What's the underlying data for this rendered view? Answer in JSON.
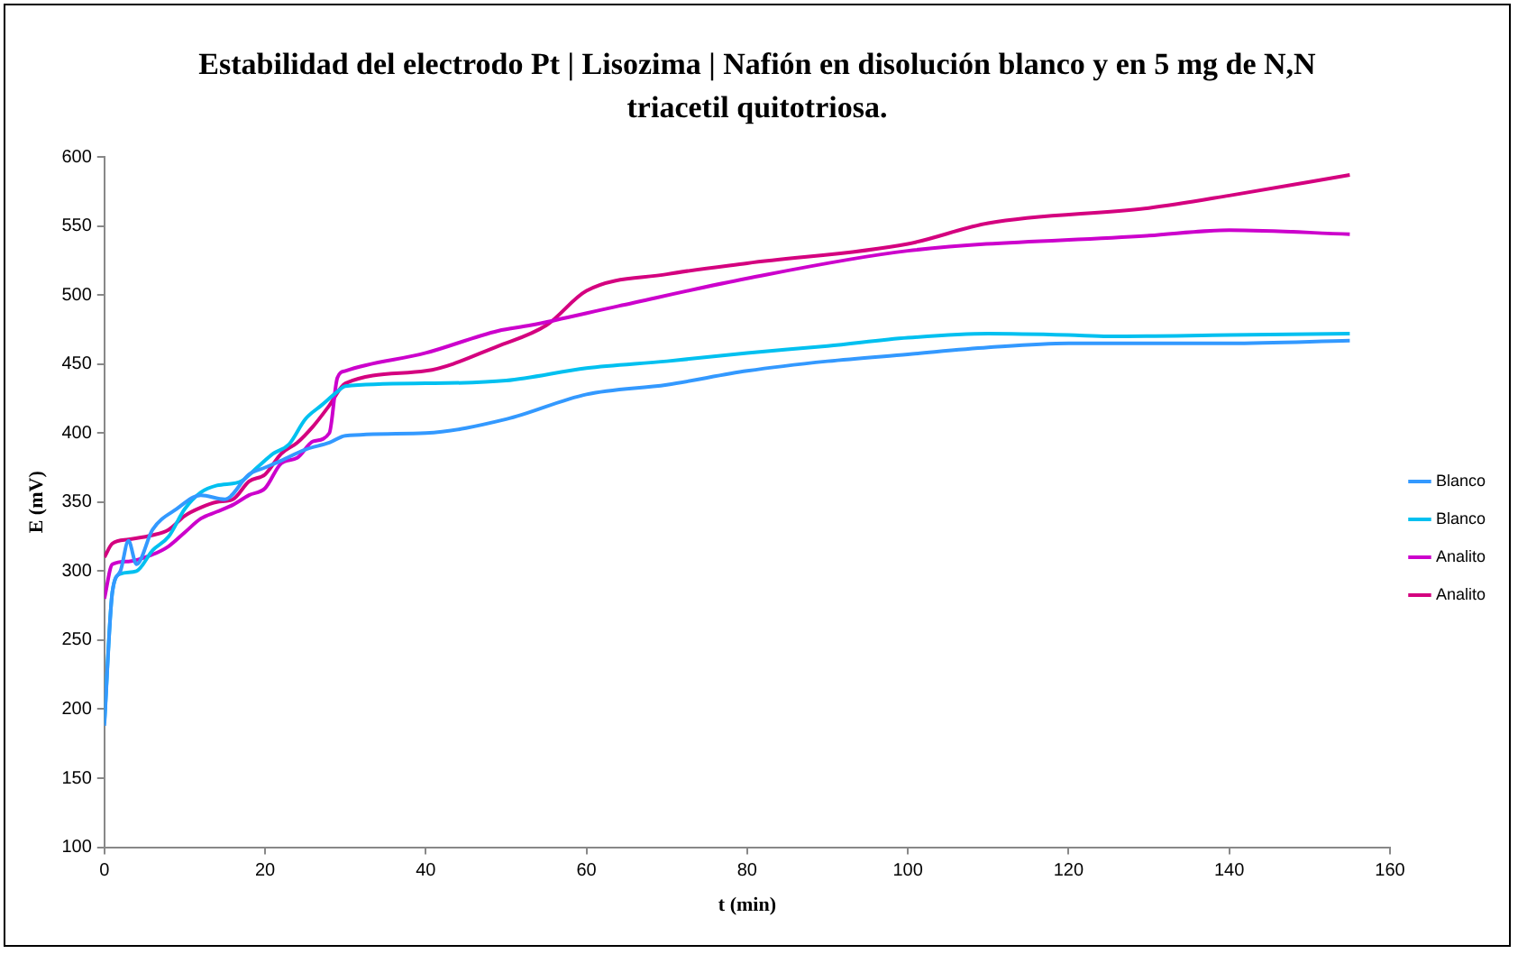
{
  "chart_data": {
    "type": "line",
    "title": "Estabilidad del electrodo Pt  | Lisozima | Nafión en disolución blanco y en 5 mg de N,N triacetil quitotriosa.",
    "xlabel": "t (min)",
    "ylabel": "E (mV)",
    "xlim": [
      0,
      160
    ],
    "xticks": [
      0,
      20,
      40,
      60,
      80,
      100,
      120,
      140,
      160
    ],
    "ylim": [
      100,
      600
    ],
    "yticks": [
      100,
      150,
      200,
      250,
      300,
      350,
      400,
      450,
      500,
      550,
      600
    ],
    "grid": false,
    "legend": "right",
    "marker": "none",
    "line_style": "solid",
    "series": [
      {
        "name": "Blanco",
        "color": "#3399ff",
        "x": [
          0,
          1,
          2,
          3,
          4,
          6,
          9,
          12,
          15,
          18,
          20,
          22,
          25,
          28,
          30,
          40,
          50,
          60,
          70,
          80,
          90,
          100,
          110,
          120,
          130,
          140,
          155
        ],
        "values": [
          188,
          285,
          300,
          322,
          305,
          330,
          345,
          355,
          352,
          370,
          375,
          380,
          388,
          393,
          398,
          400,
          410,
          428,
          435,
          445,
          452,
          457,
          462,
          465,
          465,
          465,
          467
        ]
      },
      {
        "name": "Blanco",
        "color": "#00c0f0",
        "x": [
          0,
          1,
          2,
          4,
          6,
          8,
          10,
          12,
          14,
          17,
          19,
          21,
          23,
          25,
          27,
          29,
          30,
          40,
          50,
          60,
          70,
          80,
          90,
          100,
          110,
          120,
          125,
          140,
          155
        ],
        "values": [
          190,
          285,
          298,
          300,
          315,
          325,
          345,
          357,
          362,
          365,
          375,
          385,
          392,
          410,
          420,
          430,
          434,
          436,
          438,
          447,
          452,
          458,
          463,
          469,
          472,
          471,
          470,
          471,
          472
        ]
      },
      {
        "name": "Analito",
        "color": "#cc00cc",
        "x": [
          0,
          1,
          3,
          6,
          8,
          10,
          12,
          14,
          16,
          18,
          20,
          22,
          24,
          26,
          28,
          29,
          30,
          40,
          49,
          53,
          64,
          80,
          100,
          130,
          140,
          155
        ],
        "values": [
          280,
          305,
          307,
          312,
          318,
          328,
          338,
          343,
          348,
          355,
          360,
          378,
          382,
          394,
          400,
          440,
          445,
          458,
          474,
          478,
          492,
          512,
          532,
          543,
          547,
          544
        ]
      },
      {
        "name": "Analito",
        "color": "#d4007f",
        "x": [
          0,
          1,
          3,
          6,
          8,
          10,
          12,
          14,
          16,
          18,
          20,
          22,
          24,
          26,
          28,
          30,
          40,
          49,
          55,
          60,
          70,
          80,
          100,
          110,
          130,
          140,
          155
        ],
        "values": [
          310,
          320,
          323,
          326,
          330,
          340,
          346,
          350,
          352,
          365,
          370,
          385,
          393,
          405,
          420,
          436,
          445,
          463,
          478,
          503,
          515,
          523,
          537,
          552,
          563,
          572,
          587
        ]
      }
    ]
  }
}
